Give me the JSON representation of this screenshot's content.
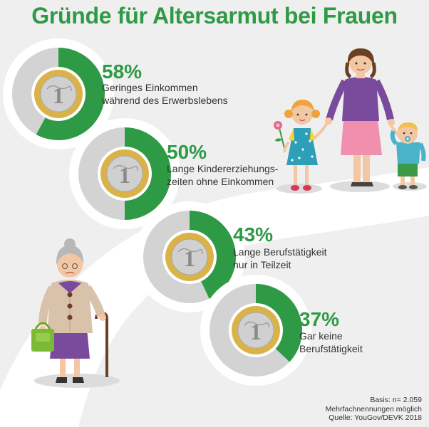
{
  "title": "Gründe für Altersarmut bei Frauen",
  "chart_data": {
    "type": "pie",
    "title": "Gründe für Altersarmut bei Frauen",
    "items": [
      {
        "label": "58%",
        "value": 58,
        "text": [
          "Geringes Einkommen",
          "während des Erwerbslebens"
        ]
      },
      {
        "label": "50%",
        "value": 50,
        "text": [
          "Lange Kindererziehungs-",
          "zeiten ohne Einkommen"
        ]
      },
      {
        "label": "43%",
        "value": 43,
        "text": [
          "Lange Berufstätigkeit",
          "nur in Teilzeit"
        ]
      },
      {
        "label": "37%",
        "value": 37,
        "text": [
          "Gar keine",
          "Berufstätigkeit"
        ]
      }
    ],
    "colors": {
      "filled": "#2f9a46",
      "rest": "#d3d3d3",
      "title": "#2f9a46"
    }
  },
  "footer": {
    "basis": "Basis: n= 2.059",
    "note": "Mehrfachnennungen möglich",
    "source": "Quelle: YouGov/DEVK 2018"
  },
  "icons": [
    "euro-coin-icon",
    "family-illustration",
    "grandmother-illustration"
  ]
}
